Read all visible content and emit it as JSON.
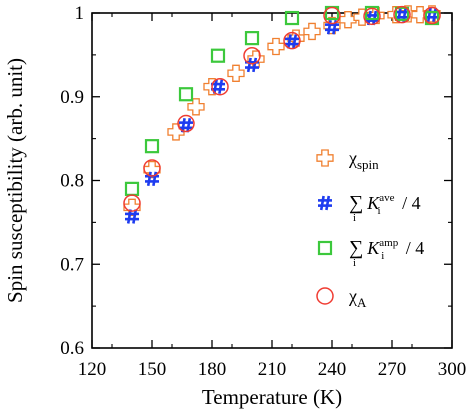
{
  "chart_data": {
    "type": "scatter",
    "xlabel": "Temperature (K)",
    "ylabel": "Spin susceptibility (arb. unit)",
    "xlim": [
      120,
      300
    ],
    "ylim": [
      0.6,
      1.0
    ],
    "x_ticks": [
      "120",
      "150",
      "180",
      "210",
      "240",
      "270",
      "300"
    ],
    "y_ticks": [
      "0.6",
      "0.7",
      "0.8",
      "0.9",
      "1"
    ],
    "grid": false,
    "legend_position": "bottom-right",
    "series": [
      {
        "name": "χspin",
        "legend": {
          "main": "χ",
          "sub": "spin"
        },
        "marker": "plus",
        "color": "#F08030",
        "points": [
          [
            140,
            0.768
          ],
          [
            150,
            0.813
          ],
          [
            162,
            0.858
          ],
          [
            172,
            0.888
          ],
          [
            180,
            0.912
          ],
          [
            192,
            0.928
          ],
          [
            202,
            0.945
          ],
          [
            212,
            0.96
          ],
          [
            222,
            0.97
          ],
          [
            230,
            0.978
          ],
          [
            240,
            0.985
          ],
          [
            248,
            0.992
          ],
          [
            255,
            0.995
          ],
          [
            262,
            0.997
          ],
          [
            272,
            0.998
          ],
          [
            278,
            0.999
          ],
          [
            284,
            0.998
          ],
          [
            290,
            0.999
          ]
        ]
      },
      {
        "name": "Σ Kᵢ^ave / 4",
        "legend": {
          "main": "K",
          "sup": "ave",
          "sub": "i",
          "suffix": "/ 4"
        },
        "marker": "hash",
        "color": "#1E3CF0",
        "points": [
          [
            140,
            0.757
          ],
          [
            150,
            0.802
          ],
          [
            167,
            0.866
          ],
          [
            183,
            0.912
          ],
          [
            200,
            0.938
          ],
          [
            220,
            0.966
          ],
          [
            240,
            0.983
          ],
          [
            260,
            0.994
          ],
          [
            275,
            0.998
          ],
          [
            290,
            0.998
          ]
        ]
      },
      {
        "name": "Σ Kᵢ^amp / 4",
        "legend": {
          "main": "K",
          "sup": "amp",
          "sub": "i",
          "suffix": "/ 4"
        },
        "marker": "square",
        "color": "#3CC83C",
        "points": [
          [
            140,
            0.79
          ],
          [
            150,
            0.841
          ],
          [
            167,
            0.903
          ],
          [
            183,
            0.949
          ],
          [
            200,
            0.97
          ],
          [
            220,
            0.994
          ],
          [
            240,
            1.0
          ],
          [
            260,
            1.0
          ],
          [
            275,
            0.999
          ],
          [
            290,
            0.994
          ]
        ]
      },
      {
        "name": "χA",
        "legend": {
          "main": "χ",
          "sub": "A"
        },
        "marker": "circle",
        "color": "#F03C32",
        "points": [
          [
            140,
            0.773
          ],
          [
            150,
            0.815
          ],
          [
            167,
            0.868
          ],
          [
            184,
            0.912
          ],
          [
            200,
            0.949
          ],
          [
            220,
            0.967
          ],
          [
            240,
            0.997
          ],
          [
            260,
            0.996
          ],
          [
            275,
            0.998
          ],
          [
            290,
            0.997
          ]
        ]
      }
    ]
  }
}
